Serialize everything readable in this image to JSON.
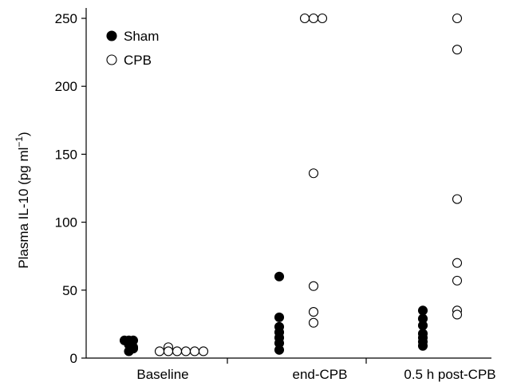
{
  "chart_data": {
    "type": "scatter",
    "title": "",
    "xlabel": "",
    "ylabel": "Plasma IL-10 (pg ml",
    "ylabel_superscript": "−1",
    "ylabel_close": ")",
    "categories": [
      "Baseline",
      "end-CPB",
      "0.5 h post-CPB"
    ],
    "ylim": [
      0,
      250
    ],
    "yticks": [
      "0",
      "50",
      "100",
      "150",
      "200",
      "250"
    ],
    "ytick_values": [
      0,
      50,
      100,
      150,
      200,
      250
    ],
    "grid": false,
    "legend_position": "top-left",
    "series": [
      {
        "name": "Sham",
        "marker": "filled-circle",
        "color": "#000000",
        "points": [
          {
            "category": 0,
            "offset": -1,
            "y": 13
          },
          {
            "category": 0,
            "offset": -0.5,
            "y": 13
          },
          {
            "category": 0,
            "offset": 0,
            "y": 13
          },
          {
            "category": 0,
            "offset": -0.5,
            "y": 10
          },
          {
            "category": 0,
            "offset": 0,
            "y": 8
          },
          {
            "category": 0,
            "offset": -0.5,
            "y": 5
          },
          {
            "category": 0,
            "offset": 0,
            "y": 7
          },
          {
            "category": 1,
            "offset": 0,
            "y": 60
          },
          {
            "category": 1,
            "offset": 0,
            "y": 30
          },
          {
            "category": 1,
            "offset": 0,
            "y": 23
          },
          {
            "category": 1,
            "offset": 0,
            "y": 19
          },
          {
            "category": 1,
            "offset": 0,
            "y": 15
          },
          {
            "category": 1,
            "offset": 0,
            "y": 11
          },
          {
            "category": 1,
            "offset": 0,
            "y": 6
          },
          {
            "category": 2,
            "offset": 0,
            "y": 35
          },
          {
            "category": 2,
            "offset": 0,
            "y": 29
          },
          {
            "category": 2,
            "offset": 0,
            "y": 24
          },
          {
            "category": 2,
            "offset": 0,
            "y": 18
          },
          {
            "category": 2,
            "offset": 0,
            "y": 15
          },
          {
            "category": 2,
            "offset": 0,
            "y": 12
          },
          {
            "category": 2,
            "offset": 0,
            "y": 9
          }
        ]
      },
      {
        "name": "CPB",
        "marker": "open-circle",
        "color": "#000000",
        "points": [
          {
            "category": 0,
            "offset": 0,
            "y": 5
          },
          {
            "category": 0,
            "offset": 1,
            "y": 8
          },
          {
            "category": 0,
            "offset": 1,
            "y": 5
          },
          {
            "category": 0,
            "offset": 2,
            "y": 5
          },
          {
            "category": 0,
            "offset": 3,
            "y": 5
          },
          {
            "category": 0,
            "offset": 4,
            "y": 5
          },
          {
            "category": 0,
            "offset": 5,
            "y": 5
          },
          {
            "category": 1,
            "offset": -1,
            "y": 250
          },
          {
            "category": 1,
            "offset": 0,
            "y": 250
          },
          {
            "category": 1,
            "offset": 1,
            "y": 250
          },
          {
            "category": 1,
            "offset": 0,
            "y": 136
          },
          {
            "category": 1,
            "offset": 0,
            "y": 53
          },
          {
            "category": 1,
            "offset": 0,
            "y": 34
          },
          {
            "category": 1,
            "offset": 0,
            "y": 26
          },
          {
            "category": 2,
            "offset": 0,
            "y": 250
          },
          {
            "category": 2,
            "offset": 0,
            "y": 227
          },
          {
            "category": 2,
            "offset": 0,
            "y": 117
          },
          {
            "category": 2,
            "offset": 0,
            "y": 70
          },
          {
            "category": 2,
            "offset": 0,
            "y": 57
          },
          {
            "category": 2,
            "offset": 0,
            "y": 35
          },
          {
            "category": 2,
            "offset": 0,
            "y": 32
          }
        ]
      }
    ]
  }
}
